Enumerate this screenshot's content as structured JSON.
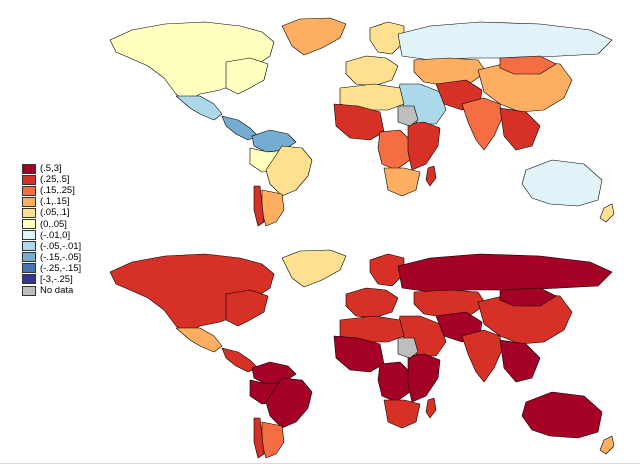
{
  "legend": {
    "items": [
      {
        "label": "(.5,3]",
        "color": "#a50026"
      },
      {
        "label": "(.25,.5]",
        "color": "#d73027"
      },
      {
        "label": "(.15,.25]",
        "color": "#f46d43"
      },
      {
        "label": "(.1,.15]",
        "color": "#fdae61"
      },
      {
        "label": "(.05,.1]",
        "color": "#fee090"
      },
      {
        "label": "(0,.05]",
        "color": "#ffffbf"
      },
      {
        "label": "(-.01,0]",
        "color": "#e0f3f8"
      },
      {
        "label": "(-.05,-.01]",
        "color": "#abd9e9"
      },
      {
        "label": "(-.15,-.05]",
        "color": "#74add1"
      },
      {
        "label": "(-.25,-.15]",
        "color": "#4575b4"
      },
      {
        "label": "[-3,-.25]",
        "color": "#313695"
      },
      {
        "label": "No data",
        "color": "#bebebe"
      }
    ]
  },
  "maps": [
    {
      "id": "top",
      "regions": {
        "greenland": "(.1,.15]",
        "north-america": "(0,.05]",
        "usa-east": "(0,.05]",
        "mexico": "(-.05,-.01]",
        "central-america": "(-.15,-.05]",
        "colombia-venezuela": "(-.15,-.05]",
        "south-america-north": "(0,.05]",
        "brazil": "(.05,.1]",
        "argentina": "(.1,.15]",
        "chile": "(.25,.5]",
        "west-europe": "(.05,.1]",
        "scandinavia": "(.05,.1]",
        "russia": "(-.01,0]",
        "central-asia": "(.1,.15]",
        "china": "(.1,.15]",
        "mongolia": "(.15,.25]",
        "middle-east": "(-.05,-.01]",
        "iran-afghanistan": "(.25,.5]",
        "india": "(.15,.25]",
        "southeast-asia": "(.25,.5]",
        "north-africa": "(.05,.1]",
        "west-africa": "(.25,.5]",
        "central-africa": "(.15,.25]",
        "east-africa": "(.25,.5]",
        "southern-africa": "(.1,.15]",
        "madagascar": "(.25,.5]",
        "sudan": "No data",
        "australia": "(-.01,0]",
        "new-zealand": "(.05,.1]"
      }
    },
    {
      "id": "bottom",
      "regions": {
        "greenland": "(.05,.1]",
        "north-america": "(.25,.5]",
        "usa-east": "(.25,.5]",
        "mexico": "(.1,.15]",
        "central-america": "(.25,.5]",
        "colombia-venezuela": "(.5,3]",
        "south-america-north": "(.5,3]",
        "brazil": "(.5,3]",
        "argentina": "(.15,.25]",
        "chile": "(.25,.5]",
        "west-europe": "(.25,.5]",
        "scandinavia": "(.25,.5]",
        "russia": "(.5,3]",
        "central-asia": "(.25,.5]",
        "china": "(.25,.5]",
        "mongolia": "(.5,3]",
        "middle-east": "(.25,.5]",
        "iran-afghanistan": "(.5,3]",
        "india": "(.25,.5]",
        "southeast-asia": "(.5,3]",
        "north-africa": "(.25,.5]",
        "west-africa": "(.5,3]",
        "central-africa": "(.5,3]",
        "east-africa": "(.5,3]",
        "southern-africa": "(.25,.5]",
        "madagascar": "(.25,.5]",
        "sudan": "No data",
        "australia": "(.5,3]",
        "new-zealand": "(.1,.15]"
      }
    }
  ]
}
